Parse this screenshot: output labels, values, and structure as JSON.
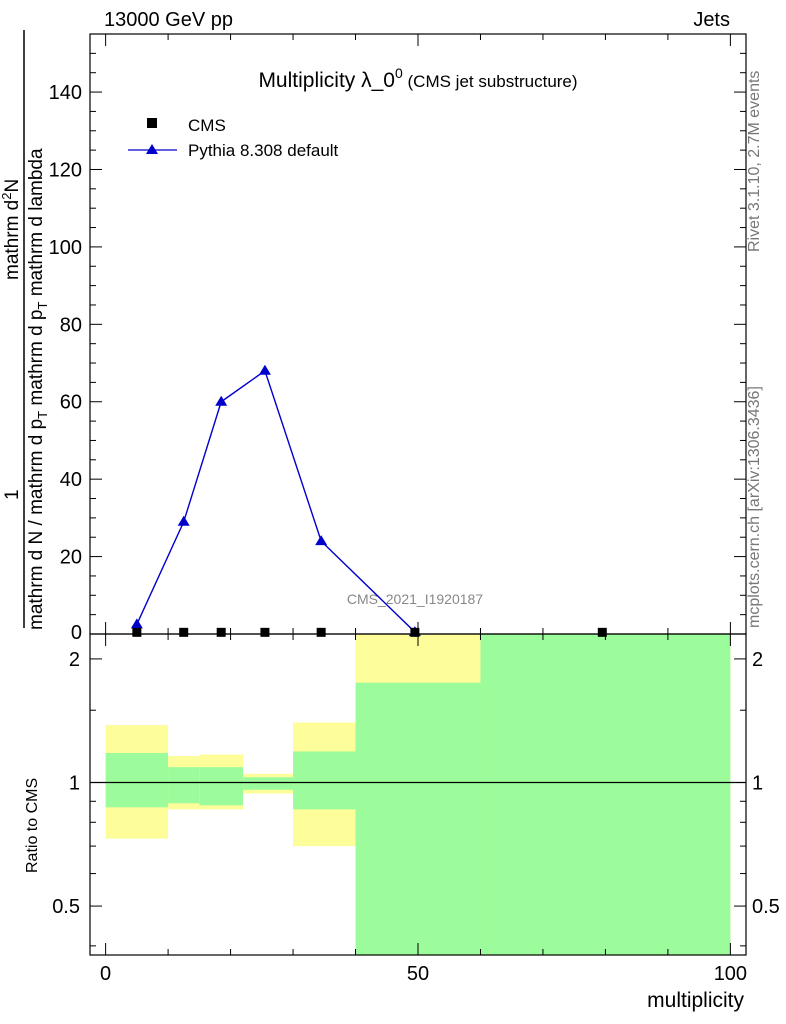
{
  "header": {
    "left": "13000 GeV pp",
    "right": "Jets"
  },
  "side_labels": {
    "rivet": "Rivet 3.1.10,  2.7M events",
    "mcplots": "mcplots.cern.ch [arXiv:1306.3436]"
  },
  "chart_data": {
    "type": "scatter",
    "title": "Multiplicity λ_0",
    "title_superscript": "0",
    "subtitle": "(CMS jet substructure)",
    "watermark": "CMS_2021_I1920187",
    "xlabel": "multiplicity",
    "ylabel_numerator_left": "1",
    "ylabel_denominator": "mathrm d N / mathrm d p",
    "ylabel_denominator_sub": "T",
    "ylabel_numerator_right_a": "mathrm d",
    "ylabel_numerator_right_b": "2",
    "ylabel_numerator_right_c": "N",
    "ylabel_second": "mathrm d p",
    "ylabel_second_sub": "T",
    "ylabel_second_tail": "mathrm d lambda",
    "ratio_ylabel": "Ratio to CMS",
    "xlim": [
      -2.5,
      102.5
    ],
    "ylim": [
      0,
      155
    ],
    "x_ticks": [
      0,
      50,
      100
    ],
    "y_ticks": [
      20,
      40,
      60,
      80,
      100,
      120,
      140
    ],
    "y_tick_zero": "0",
    "ratio_ylim": [
      0.38,
      2.3
    ],
    "ratio_ticks": [
      0.5,
      1,
      2
    ],
    "legend": [
      "CMS",
      "Pythia 8.308 default"
    ],
    "legend_position": "top-left",
    "series": [
      {
        "name": "CMS",
        "marker": "square",
        "color": "#000000",
        "x": [
          5,
          12.5,
          18.5,
          25.5,
          34.5,
          49.5,
          79.5
        ],
        "y": [
          0.3,
          0.3,
          0.3,
          0.3,
          0.3,
          0.3,
          0.3
        ]
      },
      {
        "name": "Pythia 8.308 default",
        "marker": "triangle",
        "color": "#0000cc",
        "x": [
          5,
          12.5,
          18.5,
          25.5,
          34.5,
          49.5
        ],
        "y": [
          2.5,
          29,
          60,
          68,
          24,
          0.5
        ]
      }
    ],
    "ratio_bands": [
      {
        "x0": 0,
        "x1": 10,
        "inner": [
          0.87,
          1.18
        ],
        "outer": [
          0.73,
          1.38
        ]
      },
      {
        "x0": 10,
        "x1": 15,
        "inner": [
          0.89,
          1.09
        ],
        "outer": [
          0.86,
          1.16
        ]
      },
      {
        "x0": 15,
        "x1": 22,
        "inner": [
          0.88,
          1.09
        ],
        "outer": [
          0.86,
          1.17
        ]
      },
      {
        "x0": 22,
        "x1": 30,
        "inner": [
          0.96,
          1.03
        ],
        "outer": [
          0.94,
          1.05
        ]
      },
      {
        "x0": 30,
        "x1": 40,
        "inner": [
          0.86,
          1.19
        ],
        "outer": [
          0.7,
          1.4
        ]
      },
      {
        "x0": 40,
        "x1": 60,
        "inner": [
          0.38,
          1.75
        ],
        "outer": [
          0.38,
          2.3
        ]
      },
      {
        "x0": 60,
        "x1": 100,
        "inner": [
          0.38,
          2.3
        ],
        "outer": [
          0.38,
          2.3
        ]
      }
    ],
    "colors": {
      "inner_band": "#9cfc9c",
      "outer_band": "#fdfd99",
      "pythia": "#0000cc",
      "watermark": "#888888"
    }
  }
}
